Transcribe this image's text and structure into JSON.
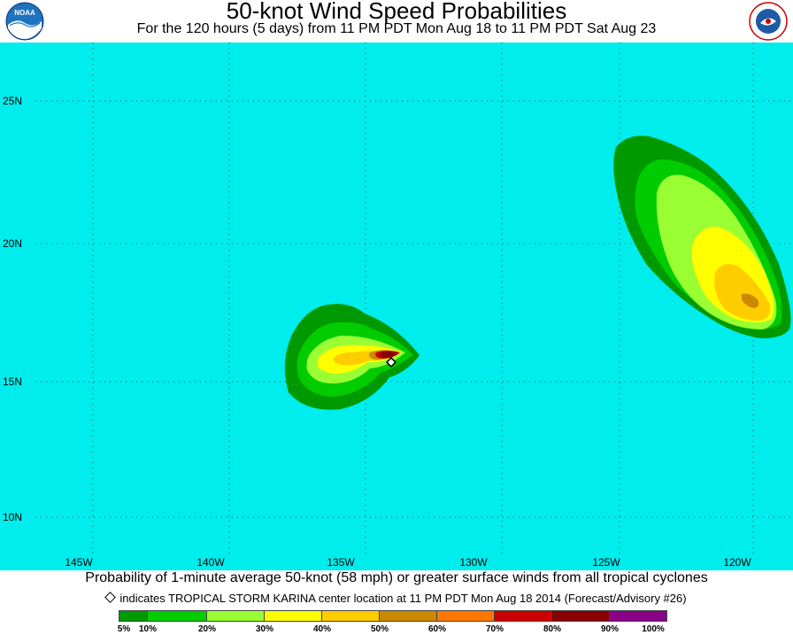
{
  "header": {
    "title": "50-knot Wind Speed Probabilities",
    "subtitle": "For the 120 hours (5 days) from 11 PM PDT Mon Aug 18 to 11 PM PDT Sat Aug 23",
    "logo_left": "NOAA",
    "logo_right": "NATIONAL WEATHER SERVICE"
  },
  "map": {
    "background_color": "#00eded",
    "grid": "dotted",
    "lat_labels": [
      "25N",
      "20N",
      "15N",
      "10N"
    ],
    "lon_labels": [
      "145W",
      "140W",
      "135W",
      "130W",
      "125W",
      "120W"
    ],
    "storm_marker_icon": "diamond-marker"
  },
  "footer": {
    "caption": "Probability of 1-minute average 50-knot (58 mph) or greater surface winds from all tropical cyclones",
    "note": "indicates TROPICAL STORM KARINA center location at 11 PM PDT Mon Aug 18 2014 (Forecast/Advisory #26)"
  },
  "legend": {
    "colors": [
      "#009900",
      "#00cc00",
      "#99ff33",
      "#ffff00",
      "#ffcc00",
      "#cc8800",
      "#ff7700",
      "#cc0000",
      "#880000",
      "#880088"
    ],
    "labels": [
      "5%",
      "10%",
      "20%",
      "30%",
      "40%",
      "50%",
      "60%",
      "70%",
      "80%",
      "90%",
      "100%"
    ]
  }
}
